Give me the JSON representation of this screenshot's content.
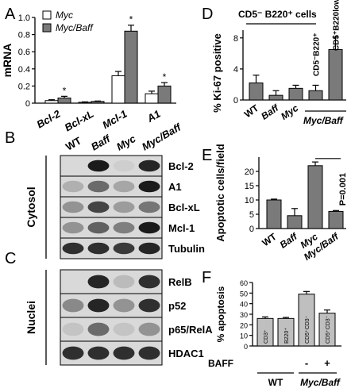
{
  "panels": {
    "A": "A",
    "B": "B",
    "C": "C",
    "D": "D",
    "E": "E",
    "F": "F"
  },
  "colors": {
    "white_bar": "#ffffff",
    "gray_bar": "#7a7a7a",
    "blot_bg": "#d9d9d9"
  },
  "chart_data": [
    {
      "panel": "A",
      "type": "bar",
      "ylabel": "mRNA",
      "ylim": [
        0,
        1.0
      ],
      "yticks": [
        "0",
        "0.2",
        "0.4",
        "0.6",
        "0.8",
        "1.0"
      ],
      "categories": [
        "Bcl-2",
        "Bcl-xL",
        "Mcl-1",
        "A1"
      ],
      "series": [
        {
          "name": "Myc",
          "values": [
            0.03,
            0.01,
            0.32,
            0.11
          ],
          "errors": [
            0.01,
            0.005,
            0.05,
            0.03
          ]
        },
        {
          "name": "Myc/Baff",
          "values": [
            0.06,
            0.02,
            0.84,
            0.2
          ],
          "errors": [
            0.02,
            0.005,
            0.07,
            0.04
          ]
        }
      ],
      "significance": [
        "*",
        "",
        "*",
        "*"
      ],
      "legend": "top-left"
    },
    {
      "panel": "D",
      "type": "bar",
      "title": "CD5⁻ B220⁺ cells",
      "ylabel": "% Ki-67 positive",
      "ylim": [
        0,
        9
      ],
      "yticks": [
        "0",
        "4",
        "8"
      ],
      "categories": [
        "WT",
        "Baff",
        "Myc",
        "Myc/Baff",
        "Myc/Baff"
      ],
      "bar_labels": [
        "",
        "",
        "",
        "CD5⁻B220⁺",
        "CD5⁺B220low"
      ],
      "group_label": "Myc/Baff",
      "values": [
        2.2,
        0.6,
        1.5,
        1.2,
        6.5
      ],
      "errors": [
        1.0,
        0.6,
        0.4,
        0.7,
        1.6
      ]
    },
    {
      "panel": "E",
      "type": "bar",
      "ylabel": "Apoptotic cells/field",
      "ylim": [
        0,
        25
      ],
      "yticks": [
        "0",
        "5",
        "10",
        "15",
        "20"
      ],
      "categories": [
        "WT",
        "Baff",
        "Myc",
        "Myc/Baff"
      ],
      "values": [
        10,
        4.5,
        22,
        6
      ],
      "errors": [
        0.3,
        2.5,
        1.3,
        0.3
      ],
      "annotation": "P=0.001"
    },
    {
      "panel": "F",
      "type": "bar",
      "ylabel": "% apoptosis",
      "ylim": [
        0,
        60
      ],
      "yticks": [
        "0",
        "10",
        "20",
        "30",
        "40",
        "50",
        "60"
      ],
      "categories": [
        "CD3⁺",
        "B220⁺",
        "CD5⁺CD3⁻",
        "CD5⁺CD3⁻"
      ],
      "values": [
        26,
        26,
        49,
        31
      ],
      "errors": [
        1.5,
        1.0,
        2.5,
        3.0
      ],
      "baff_label": "BAFF",
      "baff": [
        "",
        "",
        "-",
        "+"
      ],
      "groups": [
        "WT",
        "Myc/Baff"
      ]
    }
  ],
  "blot_B": {
    "lanes": [
      "WT",
      "Baff",
      "Myc",
      "Myc/Baff"
    ],
    "side_label": "Cytosol",
    "rows": [
      "Bcl-2",
      "A1",
      "Bcl-xL",
      "Mcl-1",
      "Tubulin"
    ]
  },
  "blot_C": {
    "side_label": "Nuclei",
    "rows": [
      "RelB",
      "p52",
      "p65/RelA",
      "HDAC1"
    ]
  }
}
